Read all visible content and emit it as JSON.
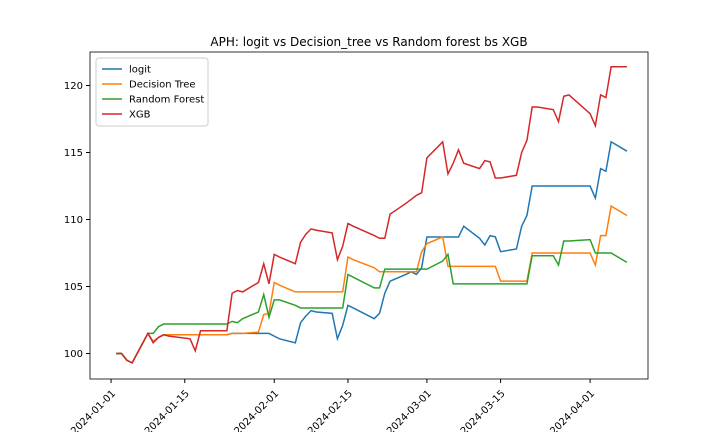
{
  "chart_data": {
    "type": "line",
    "title": "APH: logit vs Decision_tree vs Random forest bs XGB",
    "x": [
      "2024-01-02",
      "2024-01-03",
      "2024-01-04",
      "2024-01-05",
      "2024-01-08",
      "2024-01-09",
      "2024-01-10",
      "2024-01-11",
      "2024-01-12",
      "2024-01-16",
      "2024-01-17",
      "2024-01-18",
      "2024-01-19",
      "2024-01-22",
      "2024-01-23",
      "2024-01-24",
      "2024-01-25",
      "2024-01-26",
      "2024-01-29",
      "2024-01-30",
      "2024-01-31",
      "2024-02-01",
      "2024-02-02",
      "2024-02-05",
      "2024-02-06",
      "2024-02-07",
      "2024-02-08",
      "2024-02-09",
      "2024-02-12",
      "2024-02-13",
      "2024-02-14",
      "2024-02-15",
      "2024-02-16",
      "2024-02-20",
      "2024-02-21",
      "2024-02-22",
      "2024-02-23",
      "2024-02-26",
      "2024-02-27",
      "2024-02-28",
      "2024-02-29",
      "2024-03-01",
      "2024-03-04",
      "2024-03-05",
      "2024-03-06",
      "2024-03-07",
      "2024-03-08",
      "2024-03-11",
      "2024-03-12",
      "2024-03-13",
      "2024-03-14",
      "2024-03-15",
      "2024-03-18",
      "2024-03-19",
      "2024-03-20",
      "2024-03-21",
      "2024-03-22",
      "2024-03-25",
      "2024-03-26",
      "2024-03-27",
      "2024-03-28",
      "2024-04-01",
      "2024-04-02",
      "2024-04-03",
      "2024-04-04",
      "2024-04-05",
      "2024-04-08"
    ],
    "series": [
      {
        "name": "logit",
        "color": "#1f77b4",
        "values": [
          100,
          100,
          99.5,
          99.3,
          101.5,
          100.9,
          101.2,
          101.4,
          101.4,
          101.4,
          101.4,
          101.4,
          101.4,
          101.4,
          101.4,
          101.5,
          101.5,
          101.5,
          101.5,
          101.5,
          101.5,
          101.3,
          101.1,
          100.8,
          102.3,
          102.8,
          103.2,
          103.1,
          103.0,
          101.1,
          102.1,
          103.6,
          103.4,
          102.6,
          103.0,
          104.5,
          105.4,
          105.9,
          106.1,
          105.9,
          106.4,
          108.7,
          108.7,
          108.7,
          108.7,
          108.7,
          109.5,
          108.6,
          108.1,
          108.8,
          108.7,
          107.6,
          107.8,
          109.5,
          110.3,
          112.5,
          112.5,
          112.5,
          112.5,
          112.5,
          112.5,
          112.5,
          111.6,
          113.8,
          113.6,
          115.8,
          115.1
        ]
      },
      {
        "name": "Decision Tree",
        "color": "#ff7f0e",
        "values": [
          100,
          100,
          99.5,
          99.3,
          101.5,
          100.9,
          101.2,
          101.4,
          101.4,
          101.4,
          101.4,
          101.4,
          101.4,
          101.4,
          101.4,
          101.5,
          101.5,
          101.5,
          101.6,
          102.9,
          103.0,
          105.3,
          105.1,
          104.6,
          104.6,
          104.6,
          104.6,
          104.6,
          104.6,
          104.6,
          104.6,
          107.2,
          107.0,
          106.4,
          106.1,
          106.1,
          106.1,
          106.1,
          106.1,
          106.1,
          107.6,
          108.2,
          108.7,
          106.5,
          106.5,
          106.5,
          106.5,
          106.5,
          106.5,
          106.5,
          106.5,
          105.4,
          105.4,
          105.4,
          105.4,
          107.5,
          107.5,
          107.5,
          107.5,
          107.5,
          107.5,
          107.5,
          106.6,
          108.8,
          108.8,
          111.0,
          110.3
        ]
      },
      {
        "name": "Random Forest",
        "color": "#2ca02c",
        "values": [
          100,
          100,
          99.5,
          99.3,
          101.5,
          101.5,
          102.0,
          102.2,
          102.2,
          102.2,
          102.2,
          102.2,
          102.2,
          102.2,
          102.2,
          102.4,
          102.3,
          102.6,
          103.1,
          104.4,
          102.7,
          104.0,
          104.0,
          103.6,
          103.4,
          103.4,
          103.4,
          103.4,
          103.4,
          103.4,
          103.4,
          105.9,
          105.7,
          104.9,
          104.9,
          106.3,
          106.3,
          106.3,
          106.3,
          106.3,
          106.3,
          106.3,
          106.9,
          107.4,
          105.2,
          105.2,
          105.2,
          105.2,
          105.2,
          105.2,
          105.2,
          105.2,
          105.2,
          105.2,
          105.2,
          107.3,
          107.3,
          107.3,
          106.6,
          108.4,
          108.4,
          108.5,
          107.5,
          107.5,
          107.5,
          107.5,
          106.8
        ]
      },
      {
        "name": "XGB",
        "color": "#d62728",
        "values": [
          100,
          100,
          99.5,
          99.3,
          101.5,
          100.8,
          101.2,
          101.4,
          101.3,
          101.1,
          100.2,
          101.7,
          101.7,
          101.7,
          101.7,
          104.5,
          104.7,
          104.6,
          105.3,
          106.7,
          105.2,
          107.4,
          107.2,
          106.7,
          108.3,
          108.9,
          109.3,
          109.2,
          109.0,
          107.0,
          108.0,
          109.7,
          109.5,
          108.8,
          108.6,
          108.6,
          110.4,
          111.2,
          111.5,
          111.8,
          112.0,
          114.6,
          115.8,
          113.4,
          114.2,
          115.2,
          114.2,
          113.8,
          114.4,
          114.3,
          113.1,
          113.1,
          113.3,
          115.0,
          115.9,
          118.4,
          118.4,
          118.2,
          117.3,
          119.2,
          119.3,
          117.9,
          117.0,
          119.3,
          119.1,
          121.4,
          121.4
        ]
      }
    ],
    "xlim": [
      "2023-12-28",
      "2024-04-12"
    ],
    "xticks": [
      "2024-01-01",
      "2024-01-15",
      "2024-02-01",
      "2024-02-15",
      "2024-03-01",
      "2024-03-15",
      "2024-04-01"
    ],
    "ylim": [
      98.1,
      122.5
    ],
    "yticks": [
      100,
      105,
      110,
      115,
      120
    ],
    "legend": "upper left",
    "grid": false
  }
}
